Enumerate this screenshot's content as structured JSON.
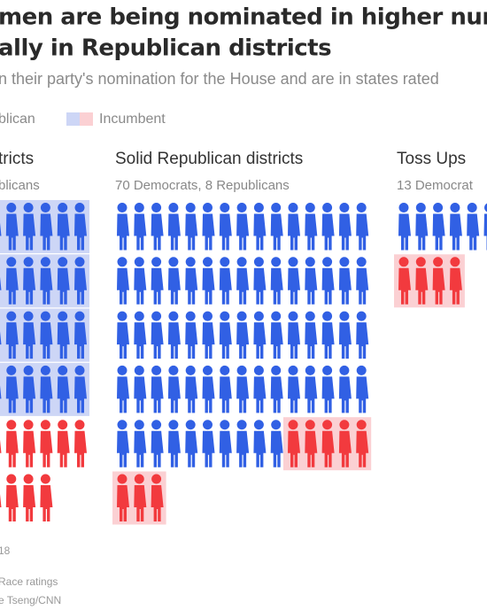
{
  "header": {
    "title_lines": [
      "men are being nominated in higher numbers tha",
      "ally in Republican districts"
    ],
    "subtitle": "n their party's nomination for the House and are in states rated"
  },
  "legend": {
    "entries": [
      {
        "label": "blican"
      },
      {
        "label": "Incumbent",
        "colors": [
          "#cdd6f6",
          "#fbd0d3"
        ]
      }
    ]
  },
  "panels": [
    {
      "title": "tricts",
      "subtitle": "blicans",
      "columns": 6,
      "groups": [
        {
          "count": 24,
          "color": "#3160e4",
          "incumbent": true
        },
        {
          "count": 10,
          "color": "#f23a3e",
          "incumbent": false
        }
      ]
    },
    {
      "title": "Solid Republican districts",
      "subtitle": "70 Democrats, 8 Republicans",
      "columns": 15,
      "groups": [
        {
          "count": 70,
          "color": "#3160e4",
          "incumbent": false
        },
        {
          "count": 8,
          "color": "#f23a3e",
          "incumbent": true
        }
      ]
    },
    {
      "title": "Toss Ups",
      "subtitle": "13 Democrat",
      "columns": 13,
      "groups": [
        {
          "count": 13,
          "color": "#3160e4",
          "incumbent": false
        },
        {
          "count": 4,
          "color": "#f23a3e",
          "incumbent": true
        }
      ]
    }
  ],
  "incumbent_backgrounds": {
    "#3160e4": "#cdd6f6",
    "#f23a3e": "#fbd0d3"
  },
  "footer": {
    "lines": [
      "18",
      "Race ratings",
      "e Tseng/CNN"
    ]
  }
}
